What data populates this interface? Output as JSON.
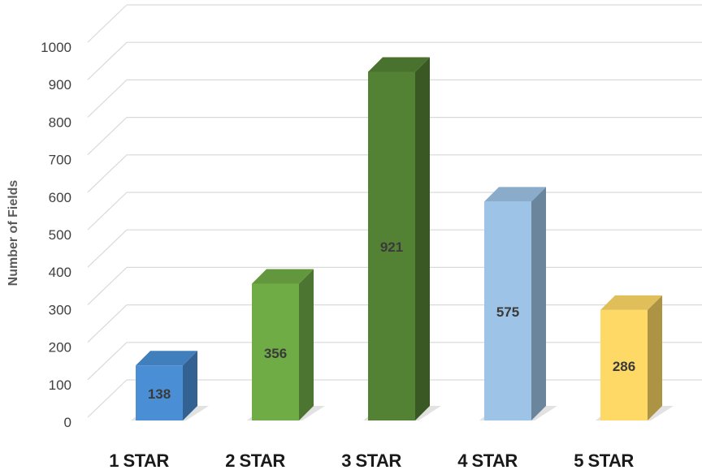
{
  "chart_data": {
    "type": "bar",
    "style": "3d-column",
    "categories": [
      "1 STAR",
      "2 STAR",
      "3 STAR",
      "4 STAR",
      "5 STAR"
    ],
    "values": [
      138,
      356,
      921,
      575,
      286
    ],
    "data_labels": [
      "138",
      "356",
      "921",
      "575",
      "286"
    ],
    "ylabel": "Number of Fields",
    "xlabel": "",
    "ylim": [
      0,
      1000
    ],
    "y_ticks": [
      "0",
      "100",
      "200",
      "300",
      "400",
      "500",
      "600",
      "700",
      "800",
      "900",
      "1000"
    ],
    "grid": true,
    "legend": "none",
    "colors": [
      "#4a8fd6",
      "#6fac46",
      "#548235",
      "#9dc3e6",
      "#ffd966"
    ]
  }
}
